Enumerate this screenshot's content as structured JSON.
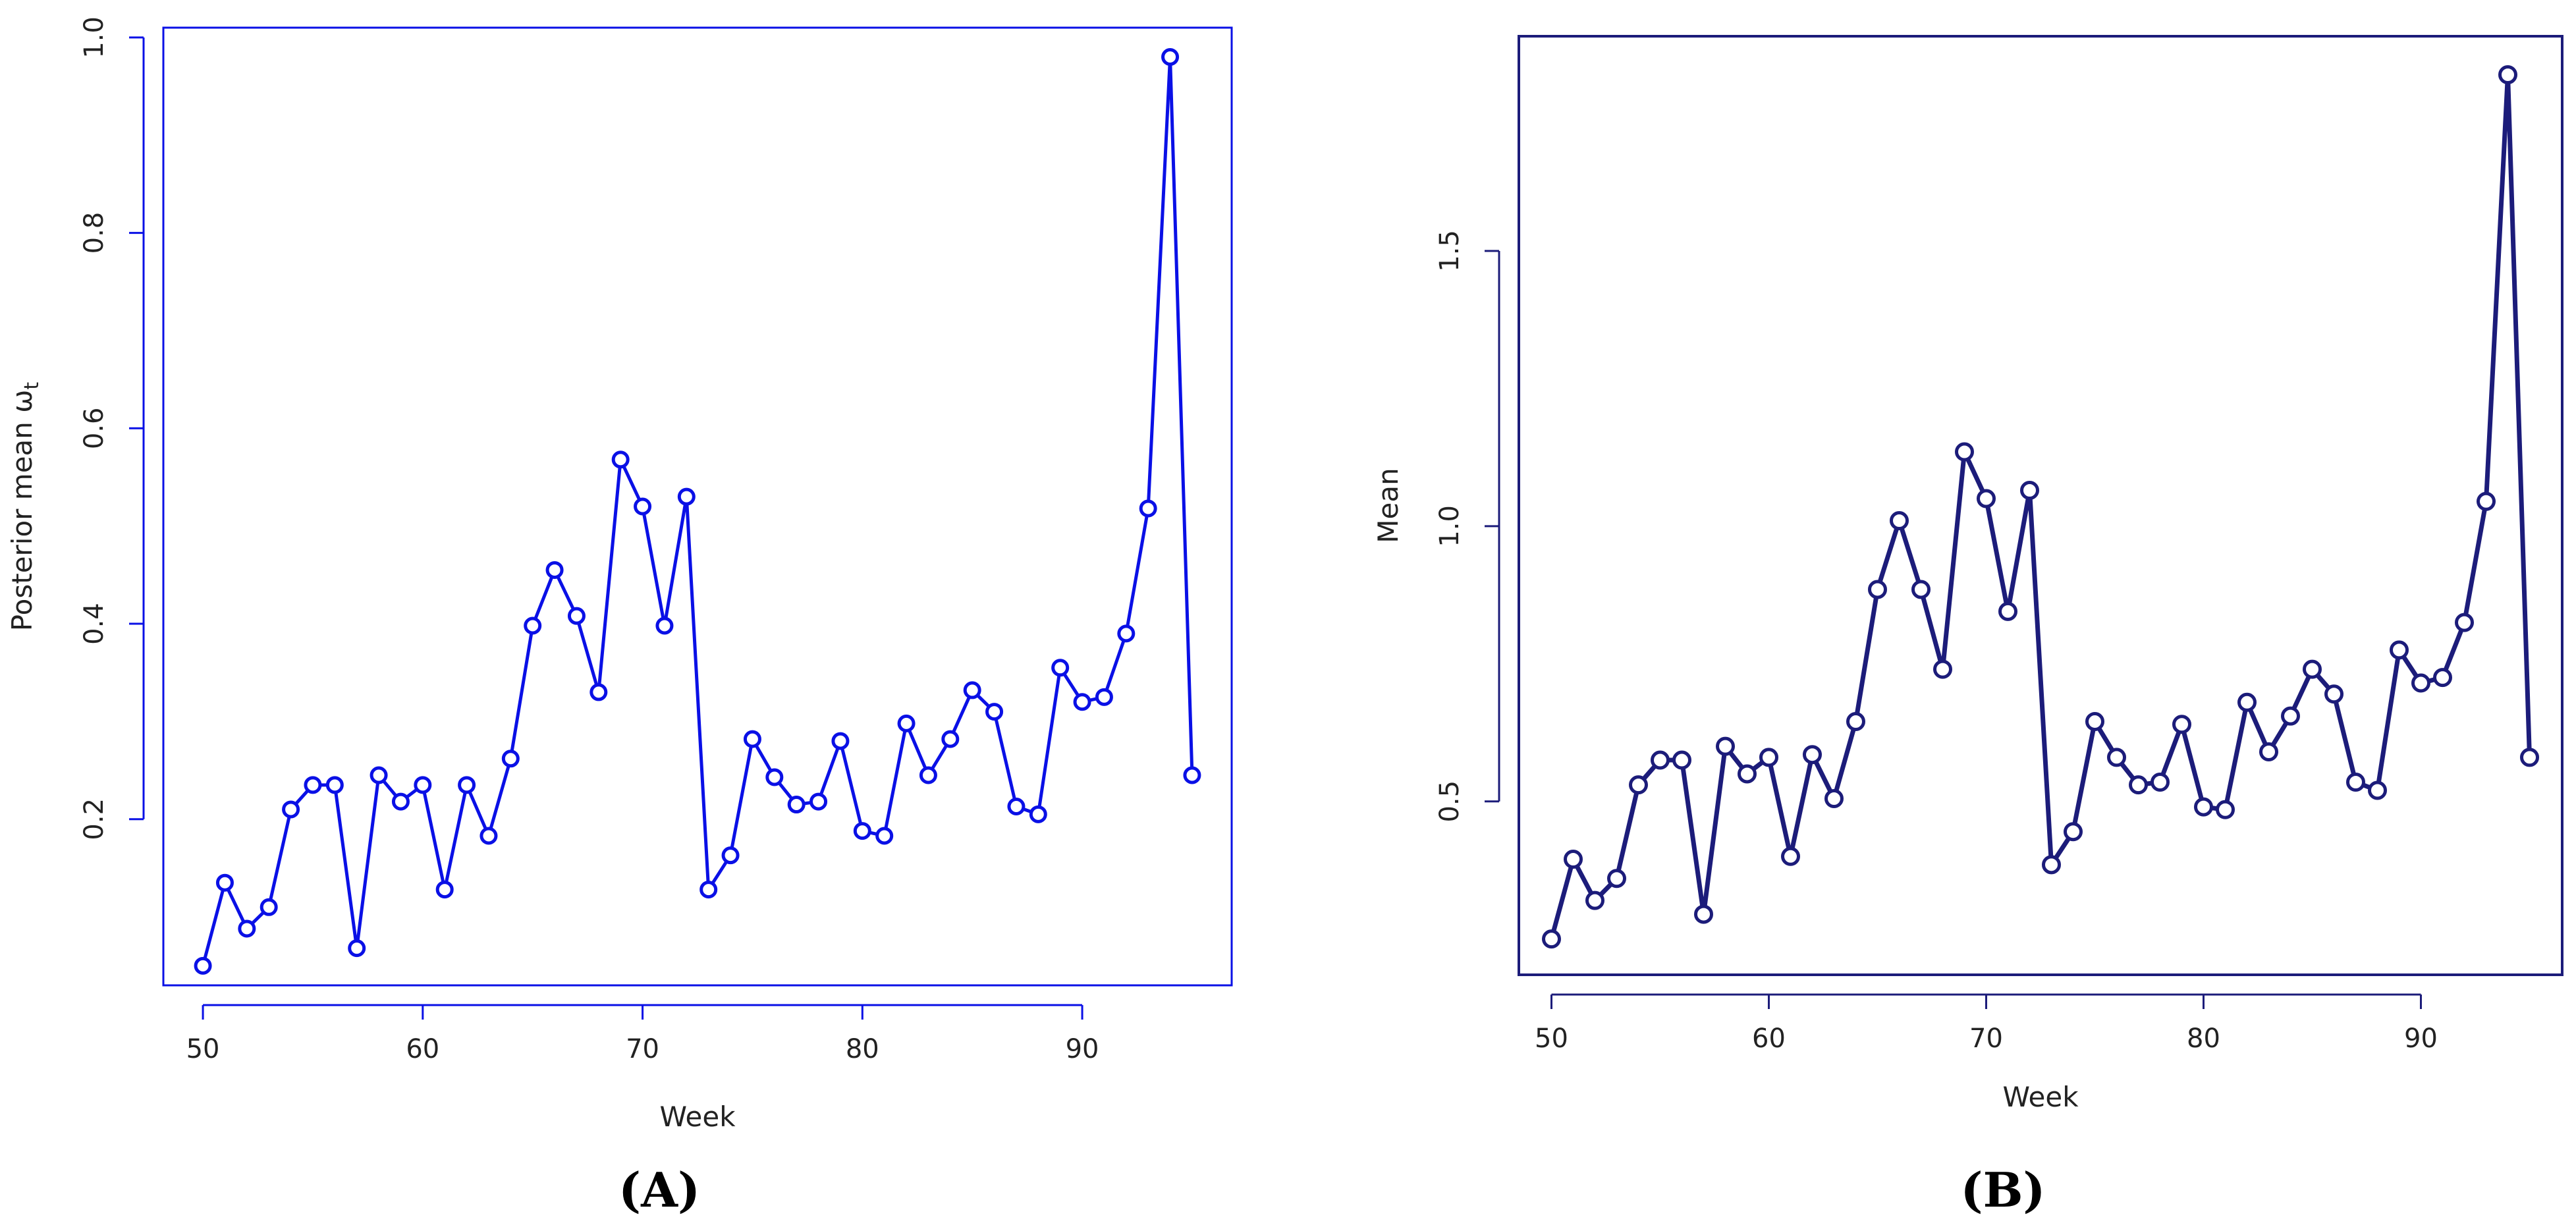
{
  "colors": {
    "panel_a": "#0a10e6",
    "panel_b": "#1c1c7a",
    "text": "#222222"
  },
  "panels": [
    {
      "label_open": "(",
      "label_letter": "A",
      "label_close": ")"
    },
    {
      "label_open": "(",
      "label_letter": "B",
      "label_close": ")"
    }
  ],
  "chart_data": [
    {
      "type": "line",
      "xlabel": "Week",
      "ylabel": "Posterior mean ω",
      "ylabel_sub": "t",
      "xlim": [
        48.2,
        96.8
      ],
      "ylim": [
        0.03,
        1.01
      ],
      "xticks": [
        50,
        60,
        70,
        80,
        90
      ],
      "yticks": [
        0.2,
        0.4,
        0.6,
        0.8,
        1.0
      ],
      "xtick_labels": [
        "50",
        "60",
        "70",
        "80",
        "90"
      ],
      "ytick_labels": [
        "0.2",
        "0.4",
        "0.6",
        "0.8",
        "1.0"
      ],
      "markers": "open-circle",
      "grid": false,
      "x": [
        50,
        51,
        52,
        53,
        54,
        55,
        56,
        57,
        58,
        59,
        60,
        61,
        62,
        63,
        64,
        65,
        66,
        67,
        68,
        69,
        70,
        71,
        72,
        73,
        74,
        75,
        76,
        77,
        78,
        79,
        80,
        81,
        82,
        83,
        84,
        85,
        86,
        87,
        88,
        89,
        90,
        91,
        92,
        93,
        94,
        95
      ],
      "values": [
        0.05,
        0.135,
        0.088,
        0.11,
        0.21,
        0.235,
        0.235,
        0.068,
        0.245,
        0.218,
        0.235,
        0.128,
        0.235,
        0.183,
        0.262,
        0.398,
        0.455,
        0.408,
        0.33,
        0.568,
        0.52,
        0.398,
        0.53,
        0.128,
        0.163,
        0.282,
        0.243,
        0.215,
        0.218,
        0.28,
        0.188,
        0.183,
        0.298,
        0.245,
        0.282,
        0.332,
        0.31,
        0.213,
        0.205,
        0.355,
        0.32,
        0.325,
        0.39,
        0.518,
        0.98,
        0.245
      ]
    },
    {
      "type": "line",
      "xlabel": "Week",
      "ylabel": "Mean",
      "xlim": [
        48.5,
        96.5
      ],
      "ylim": [
        0.185,
        1.89
      ],
      "xticks": [
        50,
        60,
        70,
        80,
        90
      ],
      "yticks": [
        0.5,
        1.0,
        1.5
      ],
      "xtick_labels": [
        "50",
        "60",
        "70",
        "80",
        "90"
      ],
      "ytick_labels": [
        "0.5",
        "1.0",
        "1.5"
      ],
      "markers": "open-circle",
      "grid": false,
      "x": [
        50,
        51,
        52,
        53,
        54,
        55,
        56,
        57,
        58,
        59,
        60,
        61,
        62,
        63,
        64,
        65,
        66,
        67,
        68,
        69,
        70,
        71,
        72,
        73,
        74,
        75,
        76,
        77,
        78,
        79,
        80,
        81,
        82,
        83,
        84,
        85,
        86,
        87,
        88,
        89,
        90,
        91,
        92,
        93,
        94,
        95
      ],
      "values": [
        0.25,
        0.395,
        0.32,
        0.36,
        0.53,
        0.575,
        0.575,
        0.295,
        0.6,
        0.55,
        0.58,
        0.4,
        0.585,
        0.505,
        0.645,
        0.885,
        1.01,
        0.885,
        0.74,
        1.135,
        1.05,
        0.845,
        1.065,
        0.385,
        0.445,
        0.645,
        0.58,
        0.53,
        0.535,
        0.64,
        0.49,
        0.485,
        0.68,
        0.59,
        0.655,
        0.74,
        0.695,
        0.535,
        0.52,
        0.775,
        0.715,
        0.725,
        0.825,
        1.045,
        1.82,
        0.58
      ]
    }
  ]
}
